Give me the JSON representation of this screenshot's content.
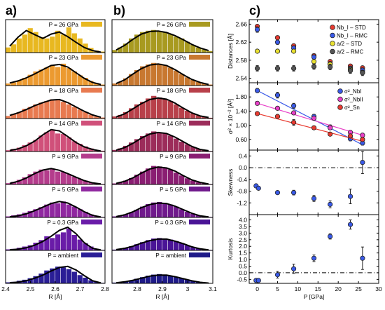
{
  "figure": {
    "panel_labels": [
      "a)",
      "b)",
      "c)"
    ]
  },
  "chart_data": [
    {
      "id": "a",
      "type": "bar",
      "panel_label": "a)",
      "xlabel": "R [Å]",
      "xlim": [
        2.4,
        2.8
      ],
      "xticks": [
        "2.4",
        "2.5",
        "2.6",
        "2.7",
        "2.8"
      ],
      "note": "stacked histograms of Nb-Sn distance distribution with fitted curves",
      "stack": [
        {
          "label": "P = 26 GPa",
          "color": "#e8b820",
          "bars": [
            0.2,
            0.32,
            0.55,
            0.7,
            0.95,
            0.8,
            0.6,
            0.55,
            0.62,
            0.85,
            0.7,
            0.98,
            0.75,
            0.55,
            0.35,
            0.18,
            0.08,
            0.04
          ],
          "curve": [
            0.25,
            0.6,
            0.86,
            0.7,
            0.55,
            0.72,
            0.8,
            0.62,
            0.4,
            0.2,
            0.08,
            0.02
          ]
        },
        {
          "label": "P = 23 GPa",
          "color": "#ec9a30",
          "bars": [
            0.08,
            0.12,
            0.2,
            0.3,
            0.42,
            0.55,
            0.62,
            0.7,
            0.8,
            0.72,
            0.85,
            0.68,
            0.55,
            0.4,
            0.3,
            0.18,
            0.1,
            0.04
          ],
          "curve": [
            0.1,
            0.18,
            0.3,
            0.45,
            0.62,
            0.78,
            0.82,
            0.72,
            0.5,
            0.28,
            0.12,
            0.04
          ]
        },
        {
          "label": "P = 18 GPa",
          "color": "#e87a50",
          "bars": [
            0.1,
            0.18,
            0.25,
            0.38,
            0.45,
            0.55,
            0.62,
            0.68,
            0.75,
            0.72,
            0.65,
            0.55,
            0.45,
            0.35,
            0.25,
            0.15,
            0.08,
            0.04
          ],
          "curve": [
            0.12,
            0.22,
            0.35,
            0.5,
            0.62,
            0.72,
            0.74,
            0.62,
            0.45,
            0.28,
            0.14,
            0.05
          ]
        },
        {
          "label": "P = 14 GPa",
          "color": "#d0507a",
          "bars": [
            0.05,
            0.1,
            0.15,
            0.25,
            0.35,
            0.45,
            0.62,
            0.75,
            0.85,
            0.7,
            0.68,
            0.55,
            0.4,
            0.3,
            0.2,
            0.12,
            0.06,
            0.03
          ],
          "curve": [
            0.04,
            0.1,
            0.22,
            0.4,
            0.65,
            0.85,
            0.8,
            0.58,
            0.35,
            0.18,
            0.08,
            0.02
          ]
        },
        {
          "label": "P = 9 GPa",
          "color": "#b43c8c",
          "bars": [
            0.05,
            0.1,
            0.18,
            0.28,
            0.4,
            0.5,
            0.58,
            0.55,
            0.62,
            0.5,
            0.48,
            0.4,
            0.3,
            0.22,
            0.15,
            0.08,
            0.04,
            0.02
          ],
          "curve": [
            0.04,
            0.12,
            0.25,
            0.42,
            0.56,
            0.62,
            0.55,
            0.42,
            0.28,
            0.15,
            0.06,
            0.02
          ]
        },
        {
          "label": "P = 5 GPa",
          "color": "#9028a0",
          "bars": [
            0.04,
            0.08,
            0.12,
            0.18,
            0.25,
            0.32,
            0.4,
            0.5,
            0.58,
            0.55,
            0.62,
            0.5,
            0.42,
            0.32,
            0.22,
            0.12,
            0.06,
            0.02
          ],
          "curve": [
            0.02,
            0.06,
            0.14,
            0.26,
            0.4,
            0.54,
            0.62,
            0.56,
            0.4,
            0.22,
            0.08,
            0.02
          ]
        },
        {
          "label": "P = 0.3 GPa",
          "color": "#6a1ca8",
          "bars": [
            0.04,
            0.06,
            0.1,
            0.15,
            0.2,
            0.3,
            0.4,
            0.55,
            0.48,
            0.62,
            0.7,
            0.85,
            0.6,
            0.42,
            0.28,
            0.15,
            0.06,
            0.02
          ],
          "curve": [
            0.02,
            0.05,
            0.1,
            0.2,
            0.35,
            0.55,
            0.78,
            0.9,
            0.65,
            0.3,
            0.08,
            0.02
          ]
        },
        {
          "label": "P = ambient",
          "color": "#2a1e96",
          "bars": [
            0.04,
            0.06,
            0.1,
            0.14,
            0.2,
            0.28,
            0.38,
            0.5,
            0.58,
            0.65,
            0.62,
            0.55,
            0.45,
            0.32,
            0.22,
            0.12,
            0.06,
            0.02
          ],
          "curve": [
            0.02,
            0.05,
            0.1,
            0.2,
            0.32,
            0.48,
            0.62,
            0.66,
            0.52,
            0.3,
            0.1,
            0.02
          ]
        }
      ]
    },
    {
      "id": "b",
      "type": "bar",
      "panel_label": "b)",
      "xlabel": "R [Å]",
      "xlim": [
        2.7,
        3.1
      ],
      "xticks": [
        "2.8",
        "2.9",
        "3",
        "3.1"
      ],
      "note": "stacked histograms of second-neighbour distance distribution with fitted curves",
      "stack": [
        {
          "label": "P = 26 GPa",
          "color": "#a89a20",
          "bars": [
            0.1,
            0.2,
            0.35,
            0.55,
            0.7,
            0.8,
            0.85,
            0.88,
            0.82,
            0.8,
            0.72,
            0.62,
            0.55,
            0.42,
            0.3,
            0.2,
            0.12,
            0.06
          ],
          "curve": [
            0.1,
            0.28,
            0.52,
            0.72,
            0.82,
            0.84,
            0.78,
            0.66,
            0.5,
            0.32,
            0.18,
            0.08
          ]
        },
        {
          "label": "P = 23 GPa",
          "color": "#c87830",
          "bars": [
            0.08,
            0.15,
            0.28,
            0.45,
            0.6,
            0.75,
            0.82,
            0.88,
            0.85,
            0.8,
            0.7,
            0.58,
            0.45,
            0.32,
            0.22,
            0.14,
            0.08,
            0.04
          ],
          "curve": [
            0.08,
            0.22,
            0.45,
            0.66,
            0.8,
            0.84,
            0.78,
            0.62,
            0.42,
            0.24,
            0.12,
            0.04
          ]
        },
        {
          "label": "P = 18 GPa",
          "color": "#b8404a",
          "bars": [
            0.08,
            0.14,
            0.25,
            0.4,
            0.55,
            0.65,
            0.78,
            0.88,
            0.82,
            0.76,
            0.68,
            0.55,
            0.42,
            0.3,
            0.2,
            0.12,
            0.06,
            0.03
          ],
          "curve": [
            0.06,
            0.18,
            0.38,
            0.58,
            0.74,
            0.8,
            0.75,
            0.6,
            0.4,
            0.22,
            0.1,
            0.04
          ]
        },
        {
          "label": "P = 14 GPa",
          "color": "#9c2c5a",
          "bars": [
            0.06,
            0.12,
            0.22,
            0.35,
            0.48,
            0.6,
            0.7,
            0.78,
            0.75,
            0.7,
            0.62,
            0.5,
            0.38,
            0.28,
            0.18,
            0.1,
            0.05,
            0.02
          ],
          "curve": [
            0.05,
            0.15,
            0.32,
            0.52,
            0.68,
            0.74,
            0.7,
            0.56,
            0.38,
            0.2,
            0.08,
            0.03
          ]
        },
        {
          "label": "P = 9 GPa",
          "color": "#8a1e72",
          "bars": [
            0.04,
            0.08,
            0.15,
            0.25,
            0.38,
            0.5,
            0.62,
            0.72,
            0.7,
            0.66,
            0.58,
            0.46,
            0.35,
            0.24,
            0.15,
            0.08,
            0.04,
            0.02
          ],
          "curve": [
            0.04,
            0.12,
            0.26,
            0.44,
            0.6,
            0.68,
            0.64,
            0.52,
            0.34,
            0.18,
            0.08,
            0.02
          ]
        },
        {
          "label": "P = 5 GPa",
          "color": "#701a8c",
          "bars": [
            0.04,
            0.08,
            0.12,
            0.2,
            0.3,
            0.42,
            0.52,
            0.58,
            0.6,
            0.56,
            0.5,
            0.42,
            0.32,
            0.22,
            0.14,
            0.08,
            0.04,
            0.02
          ],
          "curve": [
            0.03,
            0.1,
            0.22,
            0.38,
            0.5,
            0.56,
            0.54,
            0.44,
            0.3,
            0.16,
            0.06,
            0.02
          ]
        },
        {
          "label": "P = 0.3 GPa",
          "color": "#4a1496",
          "bars": [
            0.03,
            0.06,
            0.1,
            0.16,
            0.24,
            0.32,
            0.4,
            0.46,
            0.48,
            0.46,
            0.42,
            0.36,
            0.28,
            0.2,
            0.12,
            0.07,
            0.03,
            0.02
          ],
          "curve": [
            0.03,
            0.08,
            0.16,
            0.28,
            0.38,
            0.44,
            0.44,
            0.36,
            0.26,
            0.14,
            0.06,
            0.02
          ]
        },
        {
          "label": "P = ambient",
          "color": "#1e1a88",
          "bars": [
            0.03,
            0.05,
            0.08,
            0.12,
            0.18,
            0.24,
            0.3,
            0.34,
            0.36,
            0.34,
            0.3,
            0.26,
            0.2,
            0.14,
            0.09,
            0.05,
            0.03,
            0.01
          ],
          "curve": [
            0.02,
            0.06,
            0.12,
            0.2,
            0.28,
            0.32,
            0.32,
            0.26,
            0.18,
            0.1,
            0.04,
            0.01
          ]
        }
      ]
    },
    {
      "id": "c1",
      "type": "scatter",
      "panel_label": "c)",
      "ylabel": "Distances [Å]",
      "ylim": [
        2.53,
        2.67
      ],
      "yticks": [
        "2.54",
        "2.58",
        "2.62",
        "2.66"
      ],
      "xlim": [
        -2,
        30
      ],
      "legend_position": "top-right",
      "series": [
        {
          "name": "Nb_I – STD",
          "color": "#e83a30",
          "x": [
            0,
            5,
            9,
            14,
            18,
            23,
            26
          ],
          "y": [
            2.655,
            2.63,
            2.612,
            2.59,
            2.577,
            2.567,
            2.563
          ],
          "err": [
            0.004,
            0.004,
            0.004,
            0.004,
            0.004,
            0.004,
            0.004
          ]
        },
        {
          "name": "Nb_I – RMC",
          "color": "#3a5ae8",
          "x": [
            0,
            5,
            9,
            14,
            18,
            23,
            26
          ],
          "y": [
            2.648,
            2.62,
            2.607,
            2.587,
            2.572,
            2.562,
            2.558
          ],
          "err": [
            0.006,
            0.005,
            0.005,
            0.005,
            0.005,
            0.005,
            0.005
          ]
        },
        {
          "name": "a/2 – STD",
          "color": "#e8e030",
          "x": [
            0,
            5,
            9,
            14,
            18,
            23,
            26
          ],
          "y": [
            2.6,
            2.6,
            2.6,
            2.577,
            2.571,
            2.56,
            2.553
          ],
          "err": [
            0,
            0,
            0,
            0,
            0,
            0,
            0
          ]
        },
        {
          "name": "a/2 – RMC",
          "color": "#555555",
          "x": [
            0,
            5,
            9,
            14,
            18,
            23,
            26
          ],
          "y": [
            2.562,
            2.562,
            2.562,
            2.566,
            2.565,
            2.557,
            2.552
          ],
          "err": [
            0.006,
            0.006,
            0.006,
            0.006,
            0.006,
            0.006,
            0.006
          ]
        }
      ]
    },
    {
      "id": "c2",
      "type": "scatter",
      "ylabel": "σ² × 10⁻² [Å²]",
      "ylim": [
        0.3,
        2.2
      ],
      "yticks": [
        "0.60",
        "1.00",
        "1.40",
        "1.80"
      ],
      "xlim": [
        -2,
        30
      ],
      "legend_position": "top-right",
      "series": [
        {
          "name": "σ²_NbI",
          "color": "#3a5ae8",
          "x": [
            0,
            5,
            9,
            14,
            18,
            23,
            26
          ],
          "y": [
            1.98,
            1.85,
            1.55,
            1.25,
            0.95,
            0.62,
            0.5
          ],
          "err": [
            0.06,
            0.08,
            0.07,
            0.06,
            0.06,
            0.06,
            0.06
          ],
          "fit": [
            [
              0,
              1.98
            ],
            [
              26,
              0.45
            ]
          ]
        },
        {
          "name": "σ²_NbII",
          "color": "#e840c8",
          "x": [
            0,
            5,
            9,
            14,
            18,
            23,
            26
          ],
          "y": [
            1.62,
            1.48,
            1.35,
            1.2,
            0.93,
            0.8,
            0.72
          ],
          "err": [
            0.05,
            0.05,
            0.05,
            0.05,
            0.05,
            0.05,
            0.05
          ],
          "fit": [
            [
              0,
              1.62
            ],
            [
              26,
              0.72
            ]
          ]
        },
        {
          "name": "σ²_Sn",
          "color": "#e83a30",
          "x": [
            0,
            5,
            9,
            14,
            18,
            23,
            26
          ],
          "y": [
            1.33,
            1.25,
            1.08,
            0.93,
            0.75,
            0.7,
            0.6
          ],
          "err": [
            0.04,
            0.04,
            0.08,
            0.04,
            0.04,
            0.04,
            0.04
          ],
          "fit": [
            [
              0,
              1.33
            ],
            [
              26,
              0.55
            ]
          ]
        }
      ]
    },
    {
      "id": "c3",
      "type": "scatter",
      "ylabel": "Skewness",
      "ylim": [
        -1.6,
        0.6
      ],
      "yticks": [
        "-1.2",
        "-0.8",
        "-0.4",
        "0.0",
        "0.4"
      ],
      "xlim": [
        -2,
        30
      ],
      "reference_line": 0,
      "series": [
        {
          "name": "",
          "color": "#3a5ae8",
          "x": [
            -0.3,
            0.3,
            5,
            9,
            14,
            18,
            23,
            26
          ],
          "y": [
            -0.62,
            -0.7,
            -0.85,
            -0.85,
            -1.05,
            -1.25,
            -0.98,
            0.18
          ],
          "err": [
            0.04,
            0.04,
            0.06,
            0.08,
            0.1,
            0.12,
            0.25,
            0.38
          ]
        }
      ]
    },
    {
      "id": "c4",
      "type": "scatter",
      "ylabel": "Kurtosis",
      "ylim": [
        -0.8,
        4.4
      ],
      "yticks": [
        "-0.5",
        "0.0",
        "0.5",
        "1.0",
        "1.5",
        "2.0",
        "2.5",
        "3.0",
        "3.5",
        "4.0"
      ],
      "xlim": [
        -2,
        30
      ],
      "xlabel": "P [GPa]",
      "xticks": [
        "0",
        "5",
        "10",
        "15",
        "20",
        "25",
        "30"
      ],
      "reference_line": 0,
      "series": [
        {
          "name": "",
          "color": "#3a5ae8",
          "x": [
            -0.3,
            0.3,
            5,
            9,
            14,
            18,
            23,
            26
          ],
          "y": [
            -0.58,
            -0.58,
            -0.15,
            0.3,
            1.1,
            2.75,
            3.65,
            1.1
          ],
          "err": [
            0.05,
            0.05,
            0.25,
            0.35,
            0.25,
            0.2,
            0.35,
            0.85
          ]
        }
      ]
    }
  ]
}
